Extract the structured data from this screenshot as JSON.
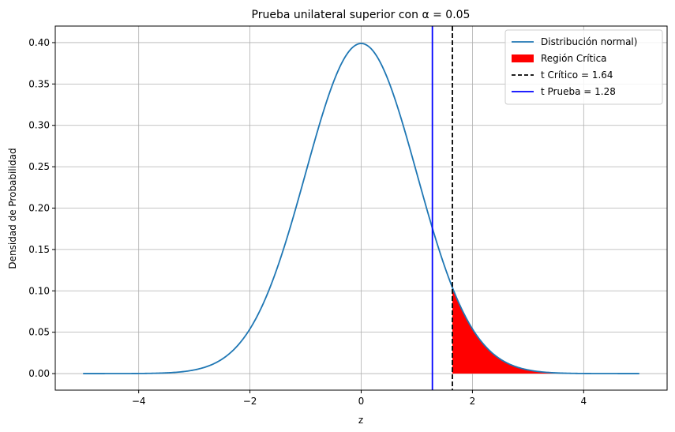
{
  "chart_data": {
    "type": "line",
    "title": "Prueba unilateral superior con α = 0.05",
    "xlabel": "z",
    "ylabel": "Densidad de Probabilidad",
    "xlim": [
      -5.5,
      5.5
    ],
    "ylim": [
      -0.02,
      0.42
    ],
    "x_ticks": [
      -4,
      -2,
      0,
      2,
      4
    ],
    "x_tick_labels": [
      "−4",
      "−2",
      "0",
      "2",
      "4"
    ],
    "y_ticks": [
      0.0,
      0.05,
      0.1,
      0.15,
      0.2,
      0.25,
      0.3,
      0.35,
      0.4
    ],
    "y_tick_labels": [
      "0.00",
      "0.05",
      "0.10",
      "0.15",
      "0.20",
      "0.25",
      "0.30",
      "0.35",
      "0.40"
    ],
    "grid": true,
    "legend_position": "top-right",
    "series": [
      {
        "name": "Distribución normal)",
        "color": "#1f77b4",
        "x": [
          -5.0,
          -4.5,
          -4.0,
          -3.5,
          -3.0,
          -2.75,
          -2.5,
          -2.25,
          -2.0,
          -1.75,
          -1.5,
          -1.25,
          -1.0,
          -0.75,
          -0.5,
          -0.25,
          0.0,
          0.25,
          0.5,
          0.75,
          1.0,
          1.25,
          1.5,
          1.75,
          2.0,
          2.25,
          2.5,
          2.75,
          3.0,
          3.5,
          4.0,
          4.5,
          5.0
        ],
        "y": [
          1.5e-06,
          1.6e-05,
          0.000134,
          0.000873,
          0.004432,
          0.009094,
          0.017528,
          0.03174,
          0.053991,
          0.086277,
          0.129518,
          0.182649,
          0.241971,
          0.301137,
          0.352065,
          0.386668,
          0.398942,
          0.386668,
          0.352065,
          0.301137,
          0.241971,
          0.182649,
          0.129518,
          0.086277,
          0.053991,
          0.03174,
          0.017528,
          0.009094,
          0.004432,
          0.000873,
          0.000134,
          1.6e-05,
          1.5e-06
        ]
      }
    ],
    "critical_region": {
      "name": "Región Crítica",
      "color": "#ff0000",
      "x_from": 1.64,
      "x_to": 5.0
    },
    "vlines": [
      {
        "name": "t Crítico = 1.64",
        "x": 1.64,
        "color": "#000000",
        "style": "dashed"
      },
      {
        "name": "t Prueba = 1.28",
        "x": 1.28,
        "color": "#0000ff",
        "style": "solid"
      }
    ]
  }
}
